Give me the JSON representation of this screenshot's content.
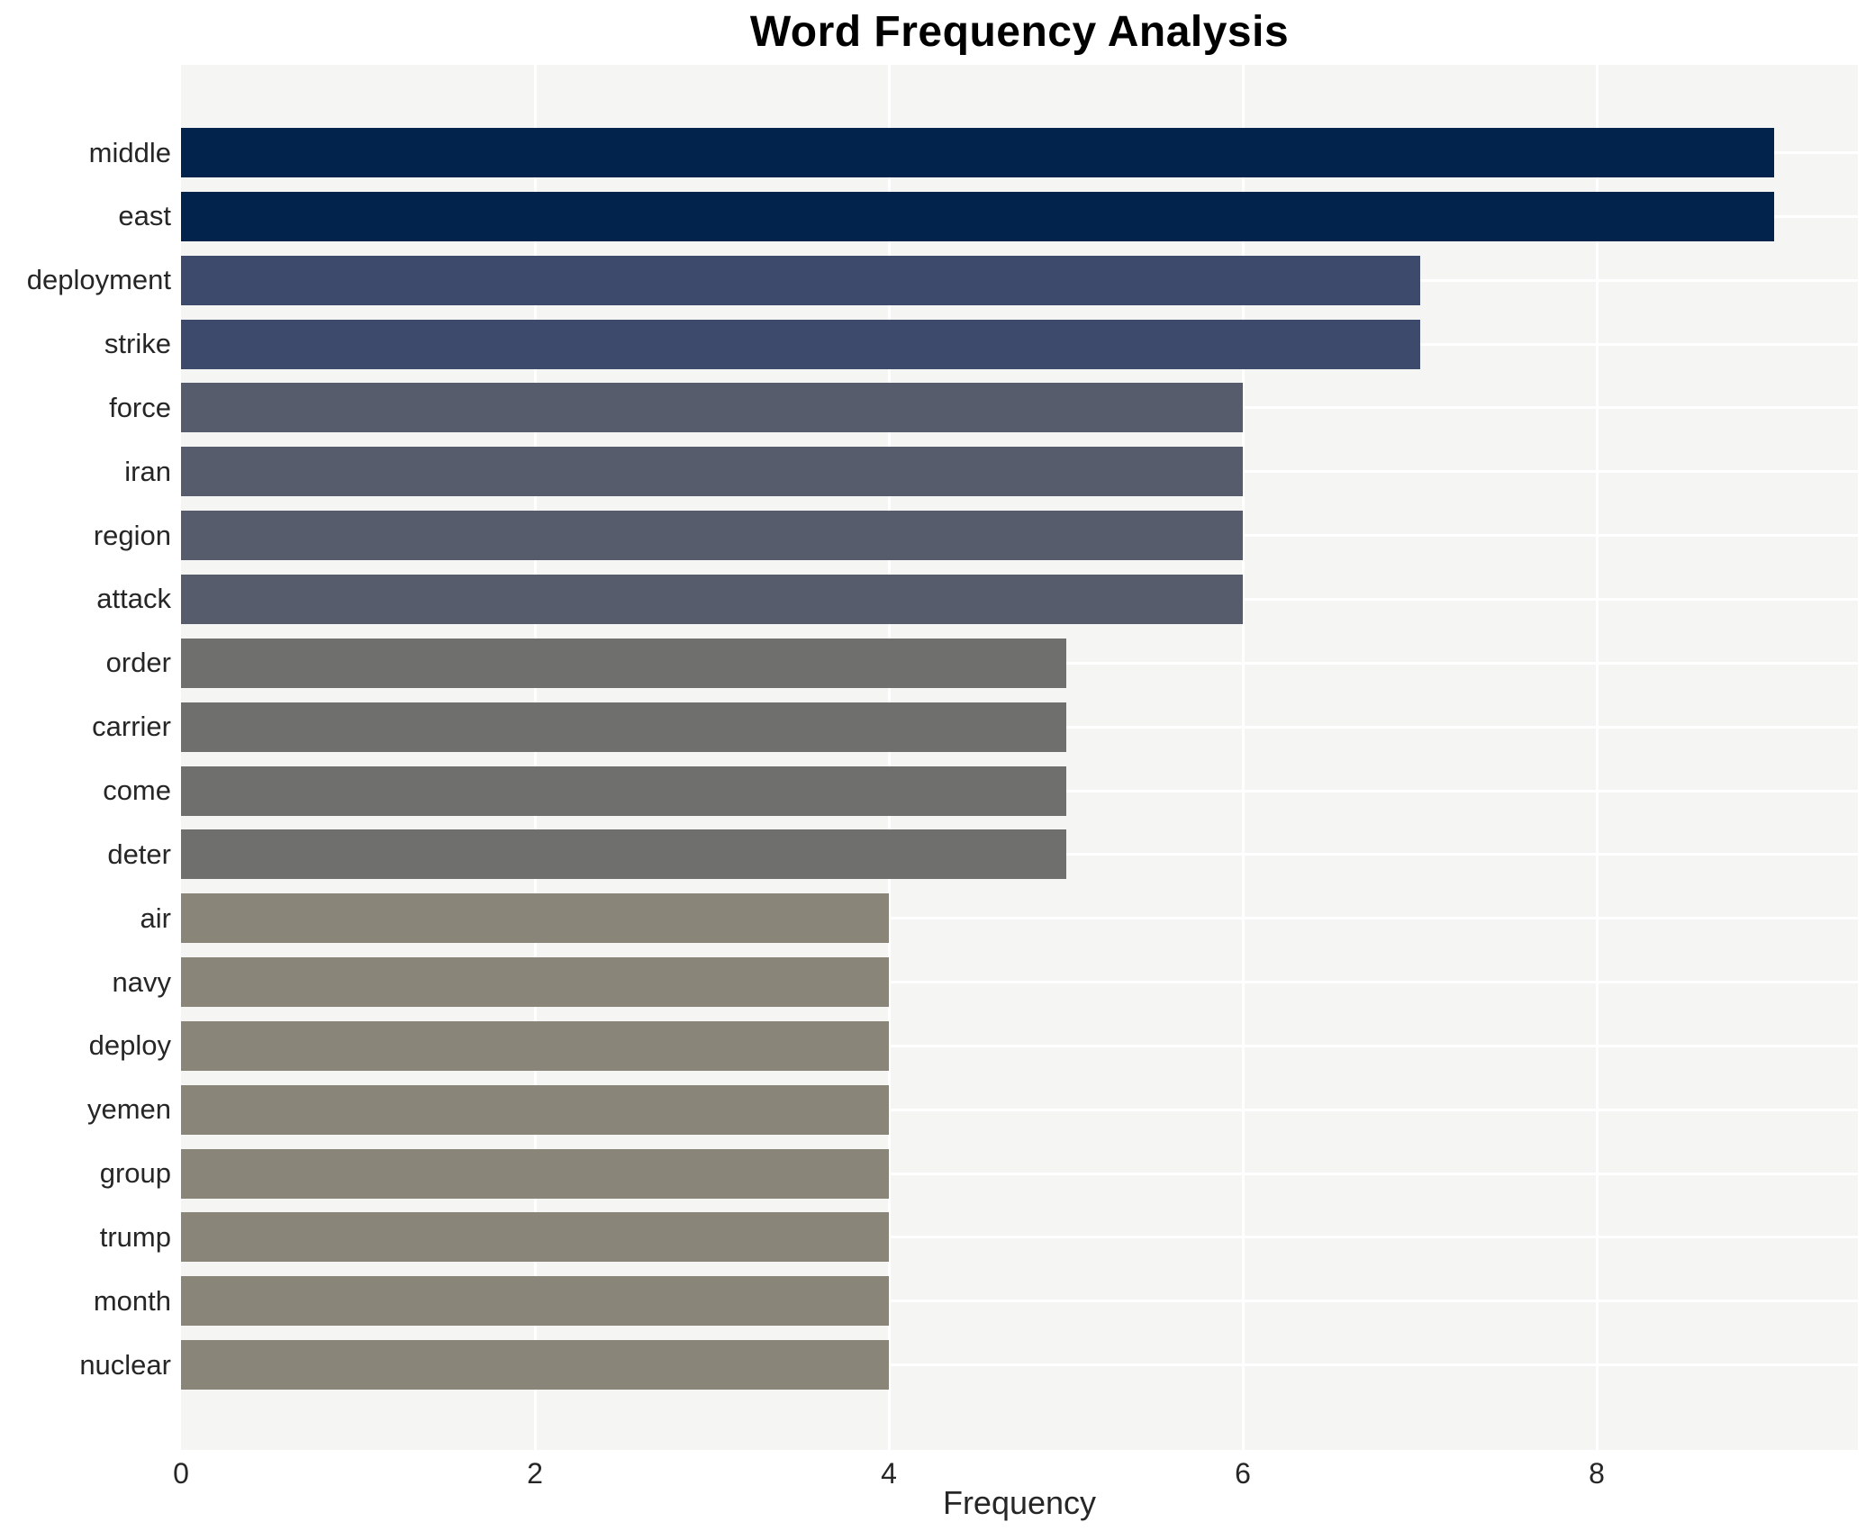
{
  "title": "Word Frequency Analysis",
  "chart_data": {
    "type": "bar",
    "orientation": "horizontal",
    "title": "Word Frequency Analysis",
    "xlabel": "Frequency",
    "ylabel": "",
    "categories": [
      "middle",
      "east",
      "deployment",
      "strike",
      "force",
      "iran",
      "region",
      "attack",
      "order",
      "carrier",
      "come",
      "deter",
      "air",
      "navy",
      "deploy",
      "yemen",
      "group",
      "trump",
      "month",
      "nuclear"
    ],
    "values": [
      9,
      9,
      7,
      7,
      6,
      6,
      6,
      6,
      5,
      5,
      5,
      5,
      4,
      4,
      4,
      4,
      4,
      4,
      4,
      4
    ],
    "bar_colors": [
      "#02234c",
      "#02234c",
      "#3d4a6b",
      "#3d4a6b",
      "#565c6c",
      "#565c6c",
      "#565c6c",
      "#565c6c",
      "#6f6f6e",
      "#6f6f6e",
      "#6f6f6e",
      "#6f6f6e",
      "#898578",
      "#898578",
      "#898578",
      "#898578",
      "#898578",
      "#898578",
      "#898578",
      "#898578"
    ],
    "xlim": [
      0,
      9.48
    ],
    "xticks": [
      0,
      2,
      4,
      6,
      8
    ],
    "grid": true,
    "legend": "none",
    "plot_background_color": "#f5f5f4",
    "gridline_color": "#ffffff",
    "text_color": "#262626"
  }
}
